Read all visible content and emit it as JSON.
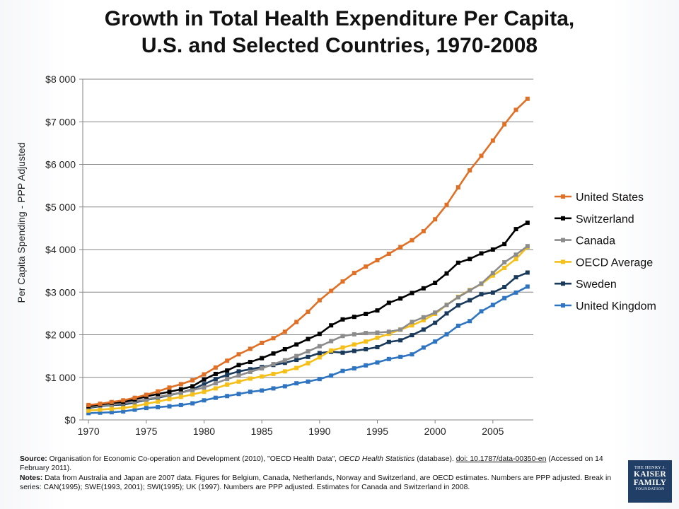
{
  "title_line1": "Growth in Total Health Expenditure Per Capita,",
  "title_line2": "U.S. and Selected Countries, 1970-2008",
  "colors": {
    "United States": "#e07026",
    "Switzerland": "#000000",
    "Canada": "#8c8c8c",
    "OECD Average": "#f5c019",
    "Sweden": "#1a3a5c",
    "United Kingdom": "#2f74c0"
  },
  "chart_data": {
    "type": "line",
    "ylabel": "Per Capita Spending - PPP Adjusted",
    "xlabel": "",
    "ylim": [
      0,
      8000
    ],
    "xlim": [
      1970,
      2008
    ],
    "y_ticks": [
      0,
      1000,
      2000,
      3000,
      4000,
      5000,
      6000,
      7000,
      8000
    ],
    "y_tick_labels": [
      "$0",
      "$1 000",
      "$2 000",
      "$3 000",
      "$4 000",
      "$5 000",
      "$6 000",
      "$7 000",
      "$8 000"
    ],
    "x_ticks": [
      1970,
      1975,
      1980,
      1985,
      1990,
      1995,
      2000,
      2005
    ],
    "x_tick_labels": [
      "1970",
      "1975",
      "1980",
      "1985",
      "1990",
      "1995",
      "2000",
      "2005"
    ],
    "grid": "horizontal",
    "legend": "right",
    "x": [
      1970,
      1971,
      1972,
      1973,
      1974,
      1975,
      1976,
      1977,
      1978,
      1979,
      1980,
      1981,
      1982,
      1983,
      1984,
      1985,
      1986,
      1987,
      1988,
      1989,
      1990,
      1991,
      1992,
      1993,
      1994,
      1995,
      1996,
      1997,
      1998,
      1999,
      2000,
      2001,
      2002,
      2003,
      2004,
      2005,
      2006,
      2007,
      2008
    ],
    "series": [
      {
        "name": "United States",
        "values": [
          350,
          380,
          420,
          460,
          520,
          590,
          670,
          760,
          840,
          930,
          1070,
          1230,
          1390,
          1540,
          1670,
          1810,
          1920,
          2070,
          2300,
          2540,
          2810,
          3030,
          3250,
          3450,
          3600,
          3750,
          3900,
          4060,
          4220,
          4430,
          4710,
          5050,
          5460,
          5860,
          6200,
          6560,
          6940,
          7280,
          7540
        ]
      },
      {
        "name": "Switzerland",
        "values": [
          320,
          360,
          400,
          420,
          480,
          550,
          610,
          660,
          720,
          790,
          950,
          1080,
          1160,
          1290,
          1360,
          1450,
          1560,
          1660,
          1770,
          1900,
          2020,
          2220,
          2360,
          2420,
          2490,
          2570,
          2750,
          2850,
          2980,
          3090,
          3220,
          3440,
          3690,
          3780,
          3910,
          4000,
          4130,
          4480,
          4630
        ]
      },
      {
        "name": "Canada",
        "values": [
          300,
          330,
          360,
          390,
          430,
          480,
          540,
          590,
          640,
          700,
          760,
          860,
          960,
          1040,
          1130,
          1210,
          1310,
          1400,
          1500,
          1610,
          1730,
          1850,
          1970,
          2010,
          2040,
          2050,
          2070,
          2120,
          2300,
          2410,
          2520,
          2700,
          2880,
          3040,
          3200,
          3450,
          3700,
          3880,
          4080
        ]
      },
      {
        "name": "OECD Average",
        "values": [
          220,
          240,
          260,
          280,
          320,
          380,
          430,
          490,
          540,
          600,
          660,
          740,
          830,
          900,
          970,
          1020,
          1080,
          1140,
          1220,
          1330,
          1470,
          1630,
          1700,
          1770,
          1840,
          1930,
          2020,
          2120,
          2220,
          2340,
          2490,
          2700,
          2890,
          3050,
          3190,
          3390,
          3570,
          3780,
          4060
        ]
      },
      {
        "name": "Sweden",
        "values": [
          280,
          320,
          350,
          360,
          410,
          470,
          520,
          580,
          640,
          720,
          840,
          960,
          1060,
          1140,
          1190,
          1240,
          1290,
          1340,
          1410,
          1480,
          1570,
          1600,
          1580,
          1620,
          1660,
          1710,
          1830,
          1870,
          1990,
          2120,
          2280,
          2500,
          2690,
          2810,
          2950,
          2990,
          3120,
          3350,
          3460
        ]
      },
      {
        "name": "United Kingdom",
        "values": [
          160,
          170,
          180,
          200,
          240,
          280,
          300,
          320,
          350,
          390,
          460,
          520,
          560,
          610,
          660,
          690,
          740,
          790,
          860,
          900,
          960,
          1040,
          1150,
          1210,
          1280,
          1350,
          1430,
          1480,
          1540,
          1700,
          1840,
          2010,
          2210,
          2320,
          2550,
          2700,
          2860,
          2990,
          3130
        ]
      }
    ]
  },
  "notes": {
    "source_label": "Source:",
    "source_text_1": "Organisation for Economic Co-operation and Development (2010), \"OECD Health Data\",",
    "source_title": "OECD Health Statistics",
    "source_text_2": "(database).",
    "source_doi": "doi: 10.1787/data-00350-en",
    "source_text_3": "(Accessed on 14 February 2011).",
    "notes_label": "Notes:",
    "notes_text": "Data from Australia and Japan are 2007 data. Figures for Belgium, Canada, Netherlands, Norway and Switzerland, are OECD estimates.  Numbers are PPP adjusted. Break in series: CAN(1995);  SWE(1993, 2001); SWI(1995); UK (1997). Numbers are PPP adjusted. Estimates for Canada and Switzerland in 2008."
  },
  "logo": {
    "line1": "THE HENRY J.",
    "line2": "KAISER",
    "line3": "FAMILY",
    "line4": "FOUNDATION"
  }
}
